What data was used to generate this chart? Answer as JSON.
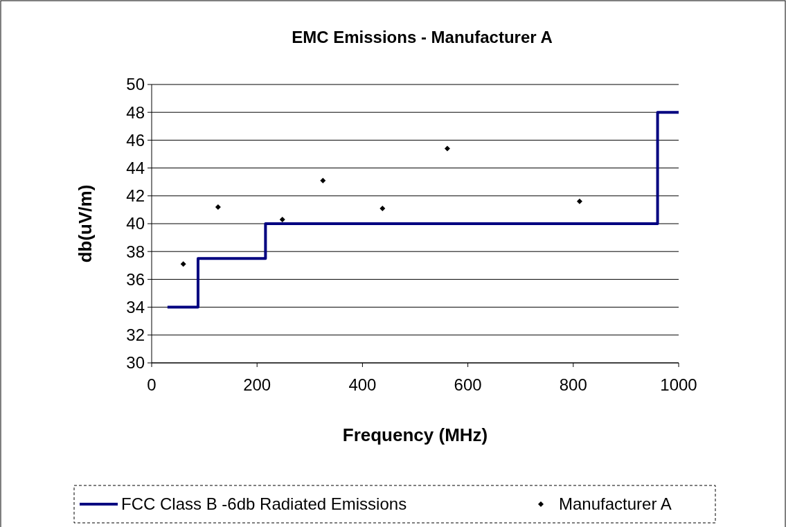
{
  "chart_data": {
    "type": "scatter",
    "title": "EMC Emissions - Manufacturer A",
    "xlabel": "Frequency (MHz)",
    "ylabel": "db(uV/m)",
    "xlim": [
      0,
      1000
    ],
    "xticks": [
      0,
      200,
      400,
      600,
      800,
      1000
    ],
    "ylim": [
      30,
      50
    ],
    "yticks": [
      30,
      32,
      34,
      36,
      38,
      40,
      42,
      44,
      46,
      48,
      50
    ],
    "grid": "y",
    "legend": "bottom",
    "series": [
      {
        "name": "FCC Class B -6db Radiated Emissions",
        "type": "step",
        "color": "#000080",
        "x": [
          30,
          88,
          216,
          960,
          1000
        ],
        "values": [
          34,
          37.5,
          40,
          48,
          48
        ],
        "marker": "none"
      },
      {
        "name": "Manufacturer A",
        "type": "scatter",
        "color": "#000000",
        "x": [
          60,
          126,
          248,
          325,
          438,
          561,
          812
        ],
        "values": [
          37.1,
          41.2,
          40.3,
          43.1,
          41.1,
          45.4,
          41.6
        ],
        "marker": "diamond"
      }
    ]
  }
}
